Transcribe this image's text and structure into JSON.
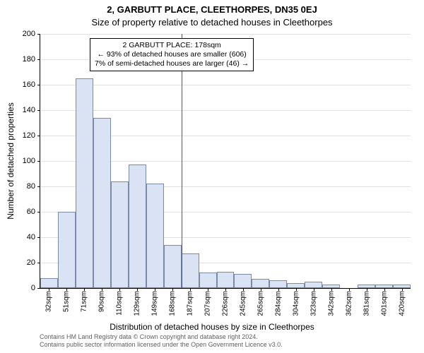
{
  "title_main": "2, GARBUTT PLACE, CLEETHORPES, DN35 0EJ",
  "title_sub": "Size of property relative to detached houses in Cleethorpes",
  "y_axis_label": "Number of detached properties",
  "x_axis_label": "Distribution of detached houses by size in Cleethorpes",
  "chart": {
    "type": "histogram",
    "ylim": [
      0,
      200
    ],
    "ytick_step": 20,
    "x_labels": [
      "32sqm",
      "51sqm",
      "71sqm",
      "90sqm",
      "110sqm",
      "129sqm",
      "149sqm",
      "168sqm",
      "187sqm",
      "207sqm",
      "226sqm",
      "245sqm",
      "265sqm",
      "284sqm",
      "304sqm",
      "323sqm",
      "342sqm",
      "362sqm",
      "381sqm",
      "401sqm",
      "420sqm"
    ],
    "values": [
      8,
      60,
      165,
      134,
      84,
      97,
      82,
      34,
      27,
      12,
      13,
      11,
      7,
      6,
      4,
      5,
      3,
      0,
      3,
      3,
      3
    ],
    "bar_fill": "#dae3f3",
    "bar_stroke": "#7a8aa8",
    "grid_color": "#e0e0e0",
    "background_color": "#ffffff",
    "ref_value_sqm": 178,
    "ref_line_color": "#e02020"
  },
  "annotation": {
    "line1": "2 GARBUTT PLACE: 178sqm",
    "line2": "← 93% of detached houses are smaller (606)",
    "line3": "7% of semi-detached houses are larger (46) →"
  },
  "footer": {
    "line1": "Contains HM Land Registry data © Crown copyright and database right 2024.",
    "line2": "Contains public sector information licensed under the Open Government Licence v3.0."
  }
}
